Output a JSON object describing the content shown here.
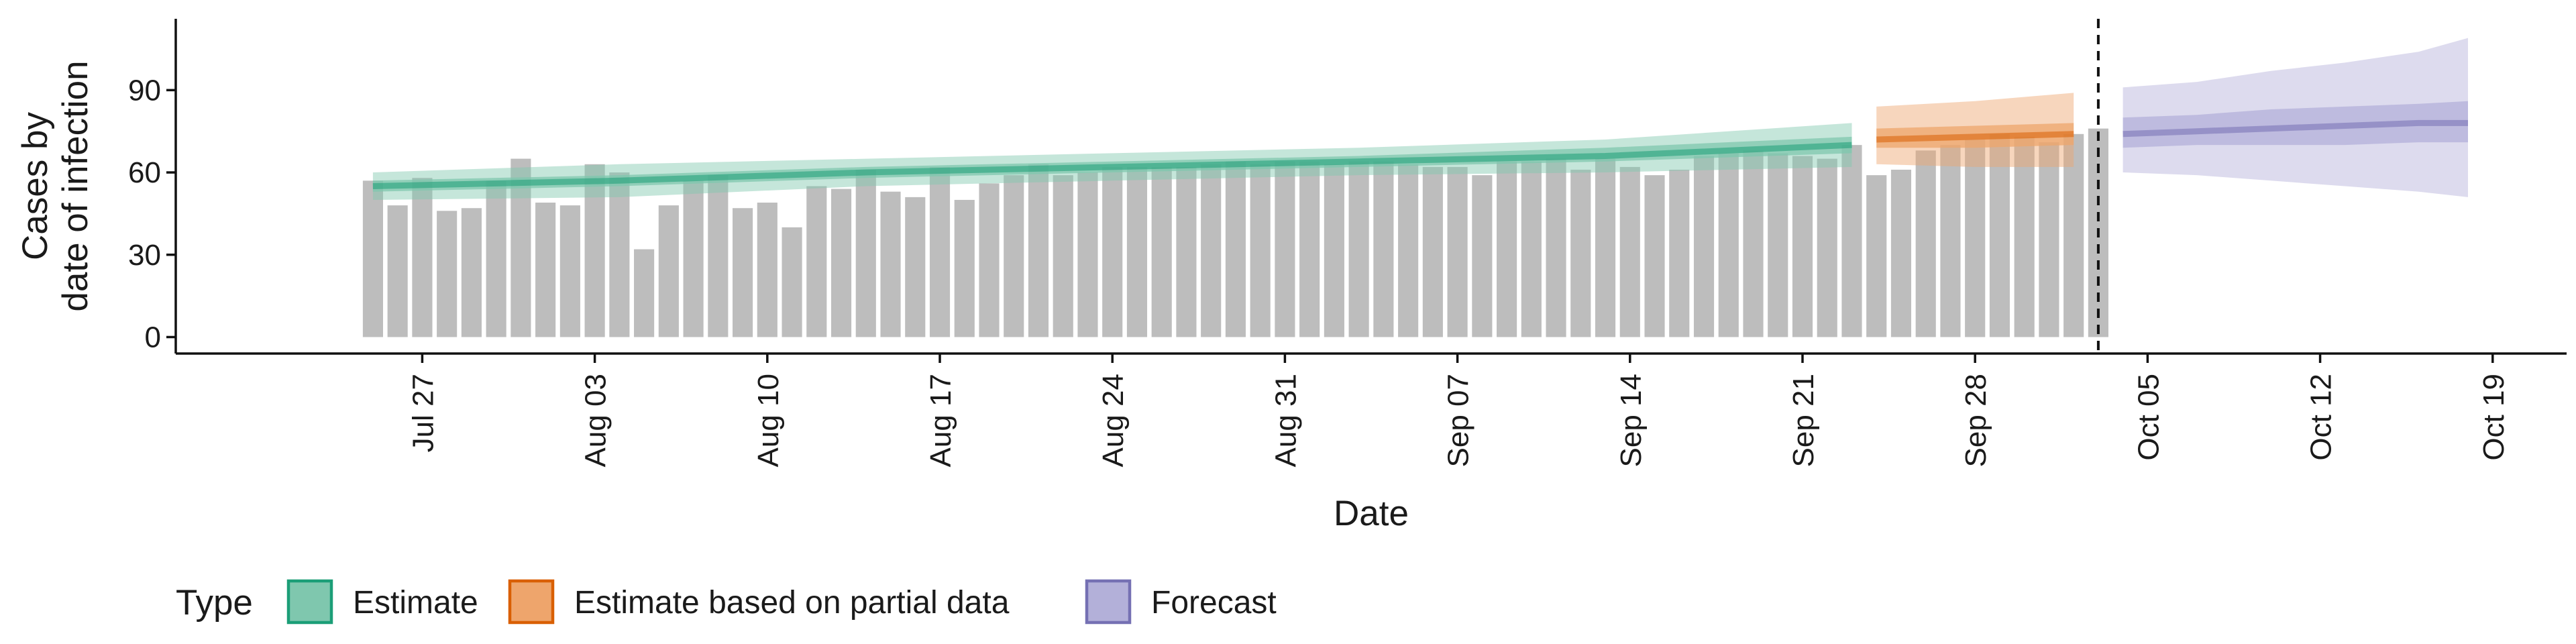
{
  "chart_data": {
    "type": "bar",
    "x_is_date": true,
    "xlabel": "Date",
    "ylabel": [
      "Cases by",
      "date of infection"
    ],
    "yticks": [
      0,
      30,
      60,
      90
    ],
    "ylim": [
      -6,
      116
    ],
    "xlim": [
      "2020-07-17",
      "2020-10-22"
    ],
    "xticks": [
      {
        "date": "2020-07-27",
        "label": "Jul 27"
      },
      {
        "date": "2020-08-03",
        "label": "Aug 03"
      },
      {
        "date": "2020-08-10",
        "label": "Aug 10"
      },
      {
        "date": "2020-08-17",
        "label": "Aug 17"
      },
      {
        "date": "2020-08-24",
        "label": "Aug 24"
      },
      {
        "date": "2020-08-31",
        "label": "Aug 31"
      },
      {
        "date": "2020-09-07",
        "label": "Sep 07"
      },
      {
        "date": "2020-09-14",
        "label": "Sep 14"
      },
      {
        "date": "2020-09-21",
        "label": "Sep 21"
      },
      {
        "date": "2020-09-28",
        "label": "Sep 28"
      },
      {
        "date": "2020-10-05",
        "label": "Oct 05"
      },
      {
        "date": "2020-10-12",
        "label": "Oct 12"
      },
      {
        "date": "2020-10-19",
        "label": "Oct 19"
      }
    ],
    "bars": {
      "start_date": "2020-07-25",
      "color": "#bdbdbd",
      "values": [
        57,
        48,
        58,
        46,
        47,
        57,
        65,
        49,
        48,
        63,
        60,
        32,
        48,
        57,
        59,
        47,
        49,
        40,
        55,
        54,
        61,
        53,
        51,
        62,
        50,
        56,
        59,
        63,
        59,
        60,
        62,
        62,
        62,
        62,
        63,
        64,
        63,
        64,
        64,
        63,
        64,
        64,
        63,
        62,
        62,
        59,
        64,
        64,
        65,
        61,
        65,
        62,
        59,
        61,
        66,
        67,
        68,
        67,
        66,
        65,
        70,
        59,
        61,
        68,
        70,
        72,
        74,
        73,
        71,
        74,
        76
      ]
    },
    "series": [
      {
        "name": "Estimate",
        "color": "#1b9e77",
        "fill": "#7fc7ae",
        "points": [
          {
            "x": "2020-07-25",
            "median": 55,
            "inner": [
              53,
              57
            ],
            "outer": [
              50,
              60
            ]
          },
          {
            "x": "2020-08-04",
            "median": 57,
            "inner": [
              55,
              59
            ],
            "outer": [
              51,
              63
            ]
          },
          {
            "x": "2020-08-14",
            "median": 60,
            "inner": [
              58,
              62
            ],
            "outer": [
              55,
              65
            ]
          },
          {
            "x": "2020-08-24",
            "median": 62,
            "inner": [
              60,
              64
            ],
            "outer": [
              57,
              67
            ]
          },
          {
            "x": "2020-09-03",
            "median": 64,
            "inner": [
              62,
              66
            ],
            "outer": [
              59,
              69
            ]
          },
          {
            "x": "2020-09-13",
            "median": 66,
            "inner": [
              64,
              69
            ],
            "outer": [
              60,
              72
            ]
          },
          {
            "x": "2020-09-23",
            "median": 70,
            "inner": [
              67,
              73
            ],
            "outer": [
              62,
              78
            ]
          }
        ]
      },
      {
        "name": "Estimate based on partial data",
        "color": "#d95f02",
        "fill": "#eea56c",
        "points": [
          {
            "x": "2020-09-24",
            "median": 72,
            "inner": [
              69,
              76
            ],
            "outer": [
              63,
              84
            ]
          },
          {
            "x": "2020-09-28",
            "median": 73,
            "inner": [
              69,
              77
            ],
            "outer": [
              62,
              86
            ]
          },
          {
            "x": "2020-10-02",
            "median": 74,
            "inner": [
              70,
              78
            ],
            "outer": [
              62,
              89
            ]
          }
        ]
      },
      {
        "name": "Forecast",
        "color": "#7570b3",
        "fill": "#b3b0d9",
        "points": [
          {
            "x": "2020-10-04",
            "median": 74,
            "inner": [
              69,
              80
            ],
            "outer": [
              60,
              91
            ]
          },
          {
            "x": "2020-10-07",
            "median": 75,
            "inner": [
              70,
              81
            ],
            "outer": [
              59,
              93
            ]
          },
          {
            "x": "2020-10-10",
            "median": 76,
            "inner": [
              70,
              83
            ],
            "outer": [
              57,
              97
            ]
          },
          {
            "x": "2020-10-13",
            "median": 77,
            "inner": [
              70,
              84
            ],
            "outer": [
              55,
              100
            ]
          },
          {
            "x": "2020-10-16",
            "median": 78,
            "inner": [
              71,
              85
            ],
            "outer": [
              53,
              104
            ]
          },
          {
            "x": "2020-10-18",
            "median": 78,
            "inner": [
              71,
              86
            ],
            "outer": [
              51,
              109
            ]
          }
        ]
      }
    ],
    "vline_date": "2020-10-03",
    "legend": {
      "title": "Type",
      "position": "bottom-left",
      "items": [
        {
          "label": "Estimate",
          "fill": "#7fc7ae",
          "stroke": "#1b9e77"
        },
        {
          "label": "Estimate based on partial data",
          "fill": "#eea56c",
          "stroke": "#d95f02"
        },
        {
          "label": "Forecast",
          "fill": "#b3b0d9",
          "stroke": "#7570b3"
        }
      ]
    }
  }
}
